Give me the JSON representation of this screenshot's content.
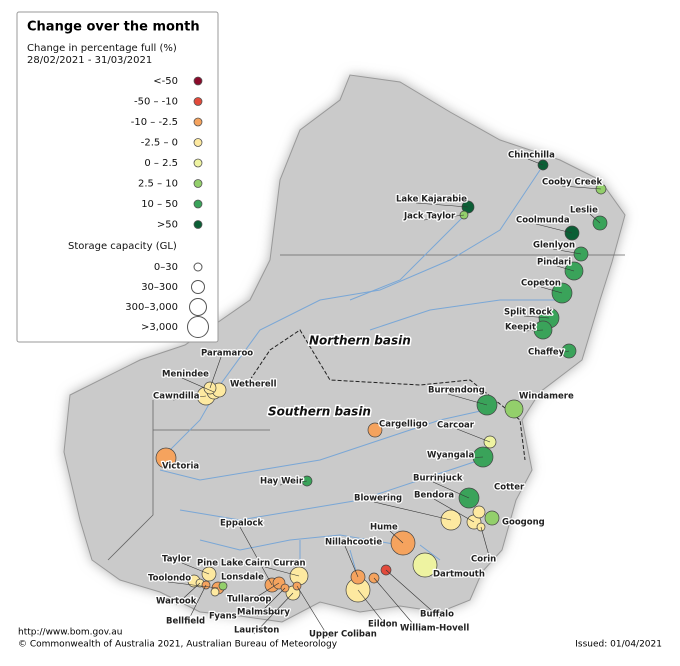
{
  "legend": {
    "title": "Change over the month",
    "subtitle": "Change in percentage full (%)",
    "period": "28/02/2021 - 31/03/2021",
    "change_classes": [
      {
        "label": "<-50",
        "color": "#8b0a2a"
      },
      {
        "label": "-50 – -10",
        "color": "#e24a3b"
      },
      {
        "label": "-10 – -2.5",
        "color": "#f5a35e"
      },
      {
        "label": "-2.5 – 0",
        "color": "#fde9a0"
      },
      {
        "label": "0 – 2.5",
        "color": "#eef3a1"
      },
      {
        "label": "2.5 – 10",
        "color": "#93cf6b"
      },
      {
        "label": "10 – 50",
        "color": "#3aa35a"
      },
      {
        "label": ">50",
        "color": "#0b5e35"
      }
    ],
    "size_title": "Storage capacity (GL)",
    "size_classes": [
      "0–30",
      "30–300",
      "300–3,000",
      ">3,000"
    ]
  },
  "regions": [
    "Northern basin",
    "Southern basin"
  ],
  "storages": [
    {
      "name": "Chinchilla",
      "color": "#0b5e35"
    },
    {
      "name": "Cooby Creek",
      "color": "#93cf6b"
    },
    {
      "name": "Lake Kajarabie",
      "color": "#0b5e35"
    },
    {
      "name": "Jack Taylor",
      "color": "#93cf6b"
    },
    {
      "name": "Leslie",
      "color": "#3aa35a"
    },
    {
      "name": "Coolmunda",
      "color": "#0b5e35"
    },
    {
      "name": "Glenlyon",
      "color": "#3aa35a"
    },
    {
      "name": "Pindari",
      "color": "#3aa35a"
    },
    {
      "name": "Copeton",
      "color": "#3aa35a"
    },
    {
      "name": "Split Rock",
      "color": "#3aa35a"
    },
    {
      "name": "Keepit",
      "color": "#3aa35a"
    },
    {
      "name": "Chaffey",
      "color": "#3aa35a"
    },
    {
      "name": "Paramaroo",
      "color": "#fde9a0"
    },
    {
      "name": "Menindee",
      "color": "#fde9a0"
    },
    {
      "name": "Wetherell",
      "color": "#fde9a0"
    },
    {
      "name": "Cawndilla",
      "color": "#fde9a0"
    },
    {
      "name": "Burrendong",
      "color": "#3aa35a"
    },
    {
      "name": "Windamere",
      "color": "#93cf6b"
    },
    {
      "name": "Cargelligo",
      "color": "#f5a35e"
    },
    {
      "name": "Carcoar",
      "color": "#eef3a1"
    },
    {
      "name": "Wyangala",
      "color": "#3aa35a"
    },
    {
      "name": "Victoria",
      "color": "#f5a35e"
    },
    {
      "name": "Hay Weir",
      "color": "#3aa35a"
    },
    {
      "name": "Burrinjuck",
      "color": "#3aa35a"
    },
    {
      "name": "Cotter",
      "color": "#fde9a0"
    },
    {
      "name": "Bendora",
      "color": "#fde9a0"
    },
    {
      "name": "Blowering",
      "color": "#fde9a0"
    },
    {
      "name": "Googong",
      "color": "#93cf6b"
    },
    {
      "name": "Eppalock",
      "color": "#f5a35e"
    },
    {
      "name": "Hume",
      "color": "#f5a35e"
    },
    {
      "name": "Corin",
      "color": "#fde9a0"
    },
    {
      "name": "Nillahcootie",
      "color": "#f5a35e"
    },
    {
      "name": "Cairn Curran",
      "color": "#fde9a0"
    },
    {
      "name": "Taylor",
      "color": "#fde9a0"
    },
    {
      "name": "Pine Lake",
      "color": "#fde9a0"
    },
    {
      "name": "Lonsdale",
      "color": "#93cf6b"
    },
    {
      "name": "Toolondo",
      "color": "#f5a35e"
    },
    {
      "name": "Wartook",
      "color": "#fde9a0"
    },
    {
      "name": "Tullaroop",
      "color": "#f5a35e"
    },
    {
      "name": "Fyans",
      "color": "#fde9a0"
    },
    {
      "name": "Bellfield",
      "color": "#f5a35e"
    },
    {
      "name": "Malmsbury",
      "color": "#f5a35e"
    },
    {
      "name": "Lauriston",
      "color": "#fde9a0"
    },
    {
      "name": "Upper Coliban",
      "color": "#f5a35e"
    },
    {
      "name": "Eildon",
      "color": "#fde9a0"
    },
    {
      "name": "Buffalo",
      "color": "#e24a3b"
    },
    {
      "name": "William-Hovell",
      "color": "#f5a35e"
    },
    {
      "name": "Dartmouth",
      "color": "#eef3a1"
    }
  ],
  "footer": {
    "url": "http://www.bom.gov.au",
    "copyright": "© Commonwealth of Australia 2021, Australian Bureau of Meteorology",
    "issued": "Issued: 01/04/2021"
  }
}
